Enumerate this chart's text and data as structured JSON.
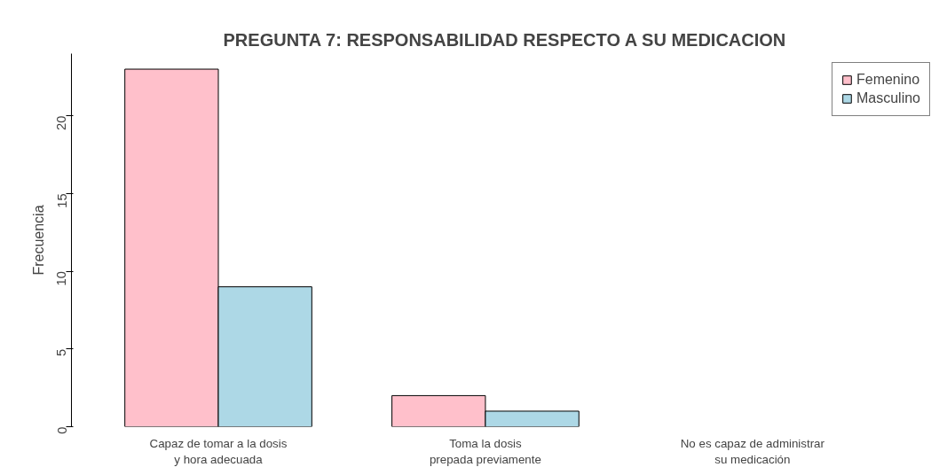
{
  "chart_data": {
    "type": "bar",
    "title": "PREGUNTA 7: RESPONSABILIDAD RESPECTO A SU MEDICACION",
    "ylabel": "Frecuencia",
    "categories": [
      "Capaz de tomar a la dosis\ny hora adecuada",
      "Toma la dosis\nprepada previamente",
      "No es capaz de administrar\nsu medicación"
    ],
    "series": [
      {
        "name": "Femenino",
        "color": "#ffc0cb",
        "values": [
          23,
          2,
          0
        ]
      },
      {
        "name": "Masculino",
        "color": "#add8e6",
        "values": [
          9,
          1,
          0
        ]
      }
    ],
    "ylim": [
      0,
      24
    ],
    "yticks": [
      0,
      5,
      10,
      15,
      20
    ],
    "grid": false,
    "legend": "top right"
  }
}
